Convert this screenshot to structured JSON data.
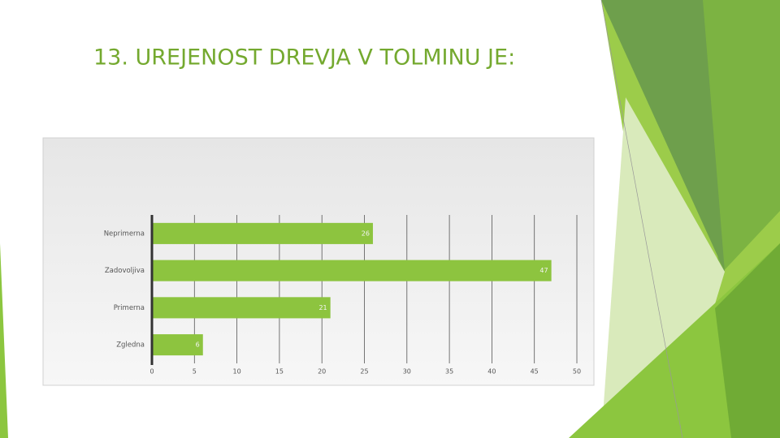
{
  "chart_data": {
    "type": "hbar",
    "title": "13. UREJENOST DREVJA V TOLMINU JE:",
    "categories": [
      "Neprimerna",
      "Zadovoljiva",
      "Primerna",
      "Zgledna"
    ],
    "values": [
      26,
      47,
      21,
      6
    ],
    "color": "#8dc43f",
    "xlim": [
      0,
      50
    ],
    "xticks": [
      0,
      5,
      10,
      15,
      20,
      25,
      30,
      35,
      40,
      45,
      50
    ],
    "grid": true
  }
}
